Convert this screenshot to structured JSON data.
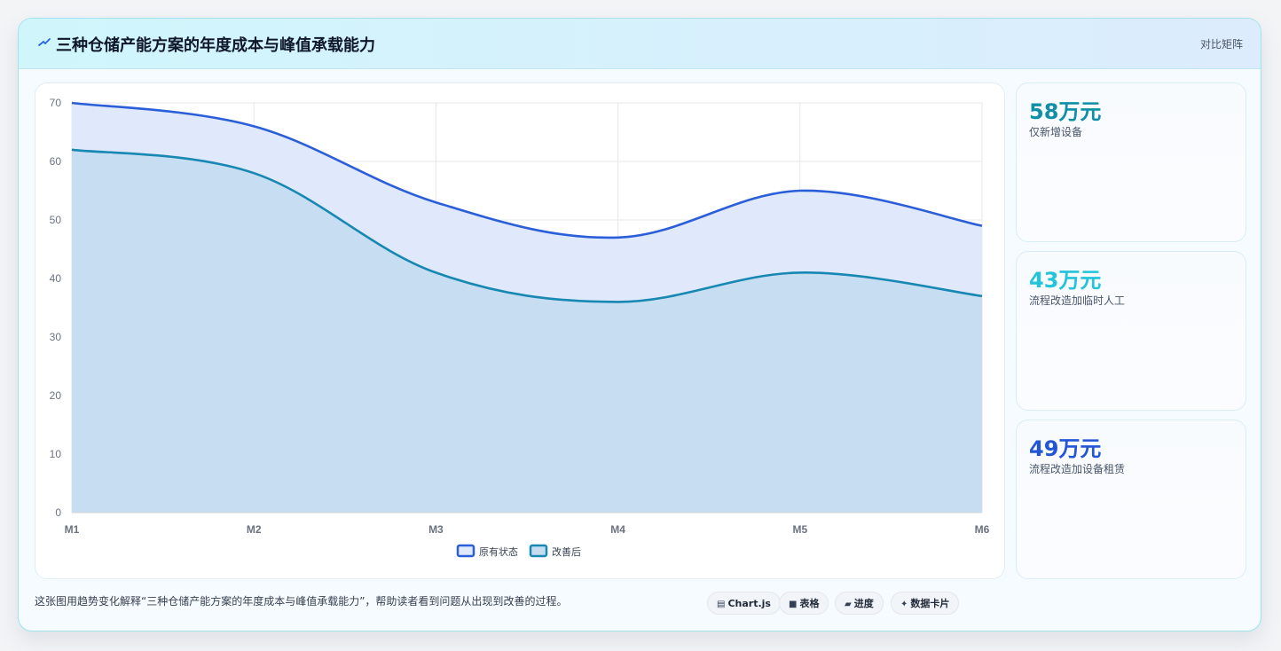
{
  "header": {
    "title": "三种仓储产能方案的年度成本与峰值承载能力",
    "link": "对比矩阵"
  },
  "chart_data": {
    "type": "area",
    "x": [
      "M1",
      "M2",
      "M3",
      "M4",
      "M5",
      "M6"
    ],
    "series": [
      {
        "name": "原有状态",
        "values": [
          70,
          66,
          53,
          47,
          55,
          49
        ],
        "color": "#2b5fd9",
        "fill": "#e0e8fb"
      },
      {
        "name": "改善后",
        "values": [
          62,
          58,
          41,
          36,
          41,
          37
        ],
        "color": "#1688b2",
        "fill": "#c5dcf1"
      }
    ],
    "ylim": [
      0,
      70
    ],
    "yticks": [
      0,
      10,
      20,
      30,
      40,
      50,
      60,
      70
    ],
    "grid": true,
    "legend_position": "bottom"
  },
  "kpis": [
    {
      "value": "58万元",
      "label": "仅新增设备",
      "color": "#0e8fa6"
    },
    {
      "value": "43万元",
      "label": "流程改造加临时人工",
      "color": "#22c4dc"
    },
    {
      "value": "49万元",
      "label": "流程改造加设备租赁",
      "color": "#2256d6"
    }
  ],
  "footer": {
    "text": "这张图用趋势变化解释“三种仓储产能方案的年度成本与峰值承载能力”，帮助读者看到问题从出现到改善的过程。",
    "chips": [
      {
        "glyph": "▤",
        "label": "Chart.js"
      },
      {
        "glyph": "■",
        "label": "表格"
      },
      {
        "glyph": "▰",
        "label": "进度"
      },
      {
        "glyph": "✦",
        "label": "数据卡片"
      }
    ]
  }
}
